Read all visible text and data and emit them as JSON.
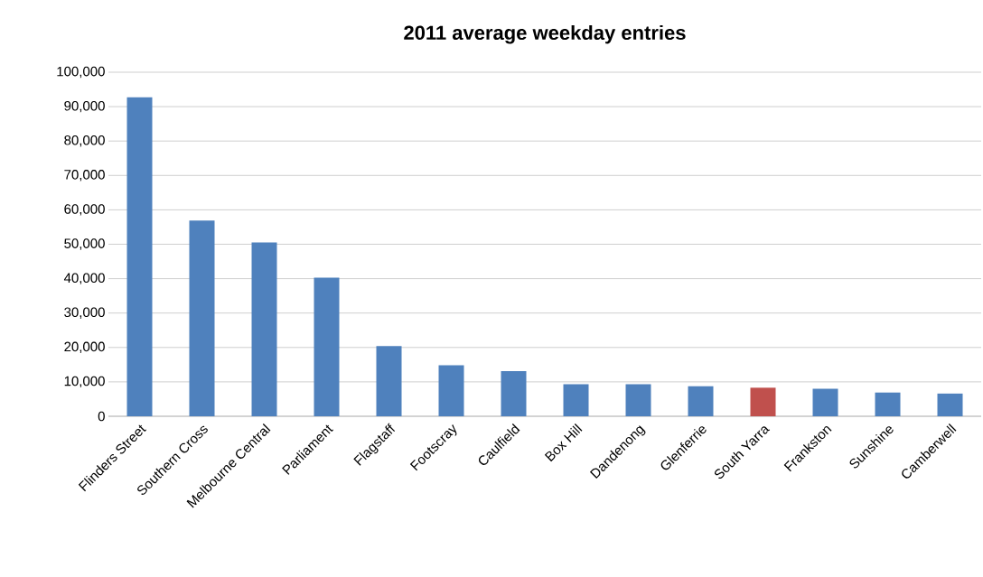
{
  "chart_data": {
    "type": "bar",
    "title": "2011 average weekday entries",
    "categories": [
      "Flinders Street",
      "Southern Cross",
      "Melbourne Central",
      "Parliament",
      "Flagstaff",
      "Footscray",
      "Caulfield",
      "Box Hill",
      "Dandenong",
      "Glenferrie",
      "South Yarra",
      "Frankston",
      "Sunshine",
      "Camberwell"
    ],
    "values": [
      92700,
      56900,
      50500,
      40300,
      20400,
      14800,
      13100,
      9300,
      9300,
      8700,
      8300,
      8000,
      6900,
      6600
    ],
    "colors": [
      "#4f81bd",
      "#4f81bd",
      "#4f81bd",
      "#4f81bd",
      "#4f81bd",
      "#4f81bd",
      "#4f81bd",
      "#4f81bd",
      "#4f81bd",
      "#4f81bd",
      "#c0504d",
      "#4f81bd",
      "#4f81bd",
      "#4f81bd"
    ],
    "ylim": [
      0,
      100000
    ],
    "yticks": [
      {
        "value": 0,
        "label": "0"
      },
      {
        "value": 10000,
        "label": "10,000"
      },
      {
        "value": 20000,
        "label": "20,000"
      },
      {
        "value": 30000,
        "label": "30,000"
      },
      {
        "value": 40000,
        "label": "40,000"
      },
      {
        "value": 50000,
        "label": "50,000"
      },
      {
        "value": 60000,
        "label": "60,000"
      },
      {
        "value": 70000,
        "label": "70,000"
      },
      {
        "value": 80000,
        "label": "80,000"
      },
      {
        "value": 90000,
        "label": "90,000"
      },
      {
        "value": 100000,
        "label": "100,000"
      }
    ],
    "grid": "y"
  }
}
